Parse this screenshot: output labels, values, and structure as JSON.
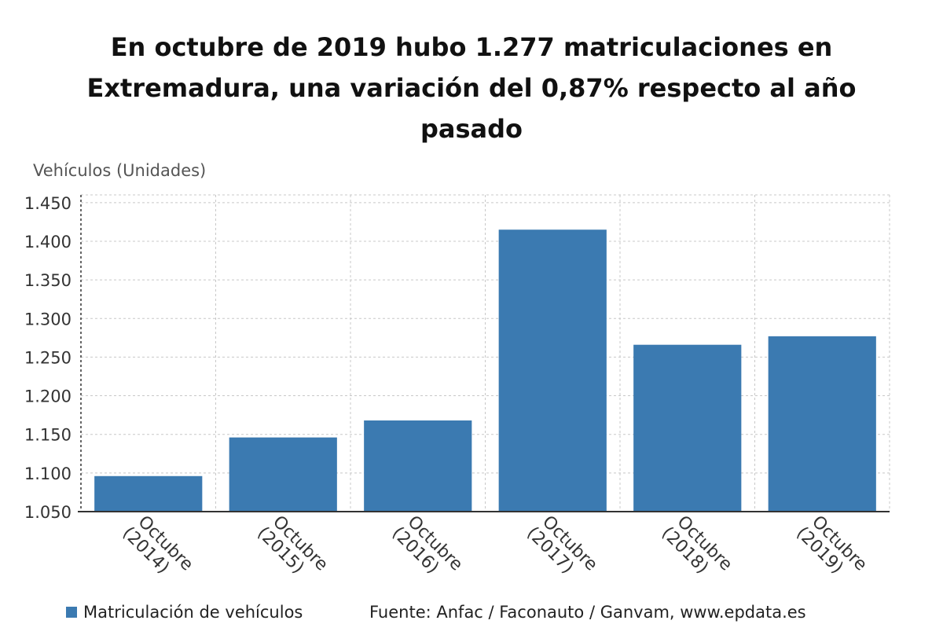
{
  "title_lines": [
    "En octubre de 2019 hubo 1.277 matriculaciones en",
    "Extremadura, una variación del 0,87% respecto al año",
    "pasado"
  ],
  "source": "Fuente: Anfac / Faconauto / Ganvam, www.epdata.es",
  "colors": {
    "bar": "#3b7ab1",
    "grid": "#c8c8c8",
    "axis": "#333333"
  },
  "chart_data": {
    "type": "bar",
    "title": "En octubre de 2019 hubo 1.277 matriculaciones en Extremadura, una variación del 0,87% respecto al año pasado",
    "ylabel": "Vehículos (Unidades)",
    "xlabel": "",
    "categories": [
      "Octubre (2014)",
      "Octubre (2015)",
      "Octubre (2016)",
      "Octubre (2017)",
      "Octubre (2018)",
      "Octubre (2019)"
    ],
    "category_lines": [
      [
        "Octubre",
        "(2014)"
      ],
      [
        "Octubre",
        "(2015)"
      ],
      [
        "Octubre",
        "(2016)"
      ],
      [
        "Octubre",
        "(2017)"
      ],
      [
        "Octubre",
        "(2018)"
      ],
      [
        "Octubre",
        "(2019)"
      ]
    ],
    "series": [
      {
        "name": "Matriculación de vehículos",
        "values": [
          1096,
          1146,
          1168,
          1415,
          1266,
          1277
        ]
      }
    ],
    "ylim": [
      1050,
      1460
    ],
    "yticks": [
      1050,
      1100,
      1150,
      1200,
      1250,
      1300,
      1350,
      1400,
      1450
    ],
    "ytick_labels": [
      "1.050",
      "1.100",
      "1.150",
      "1.200",
      "1.250",
      "1.300",
      "1.350",
      "1.400",
      "1.450"
    ],
    "grid": true,
    "legend": "bottom-left"
  }
}
